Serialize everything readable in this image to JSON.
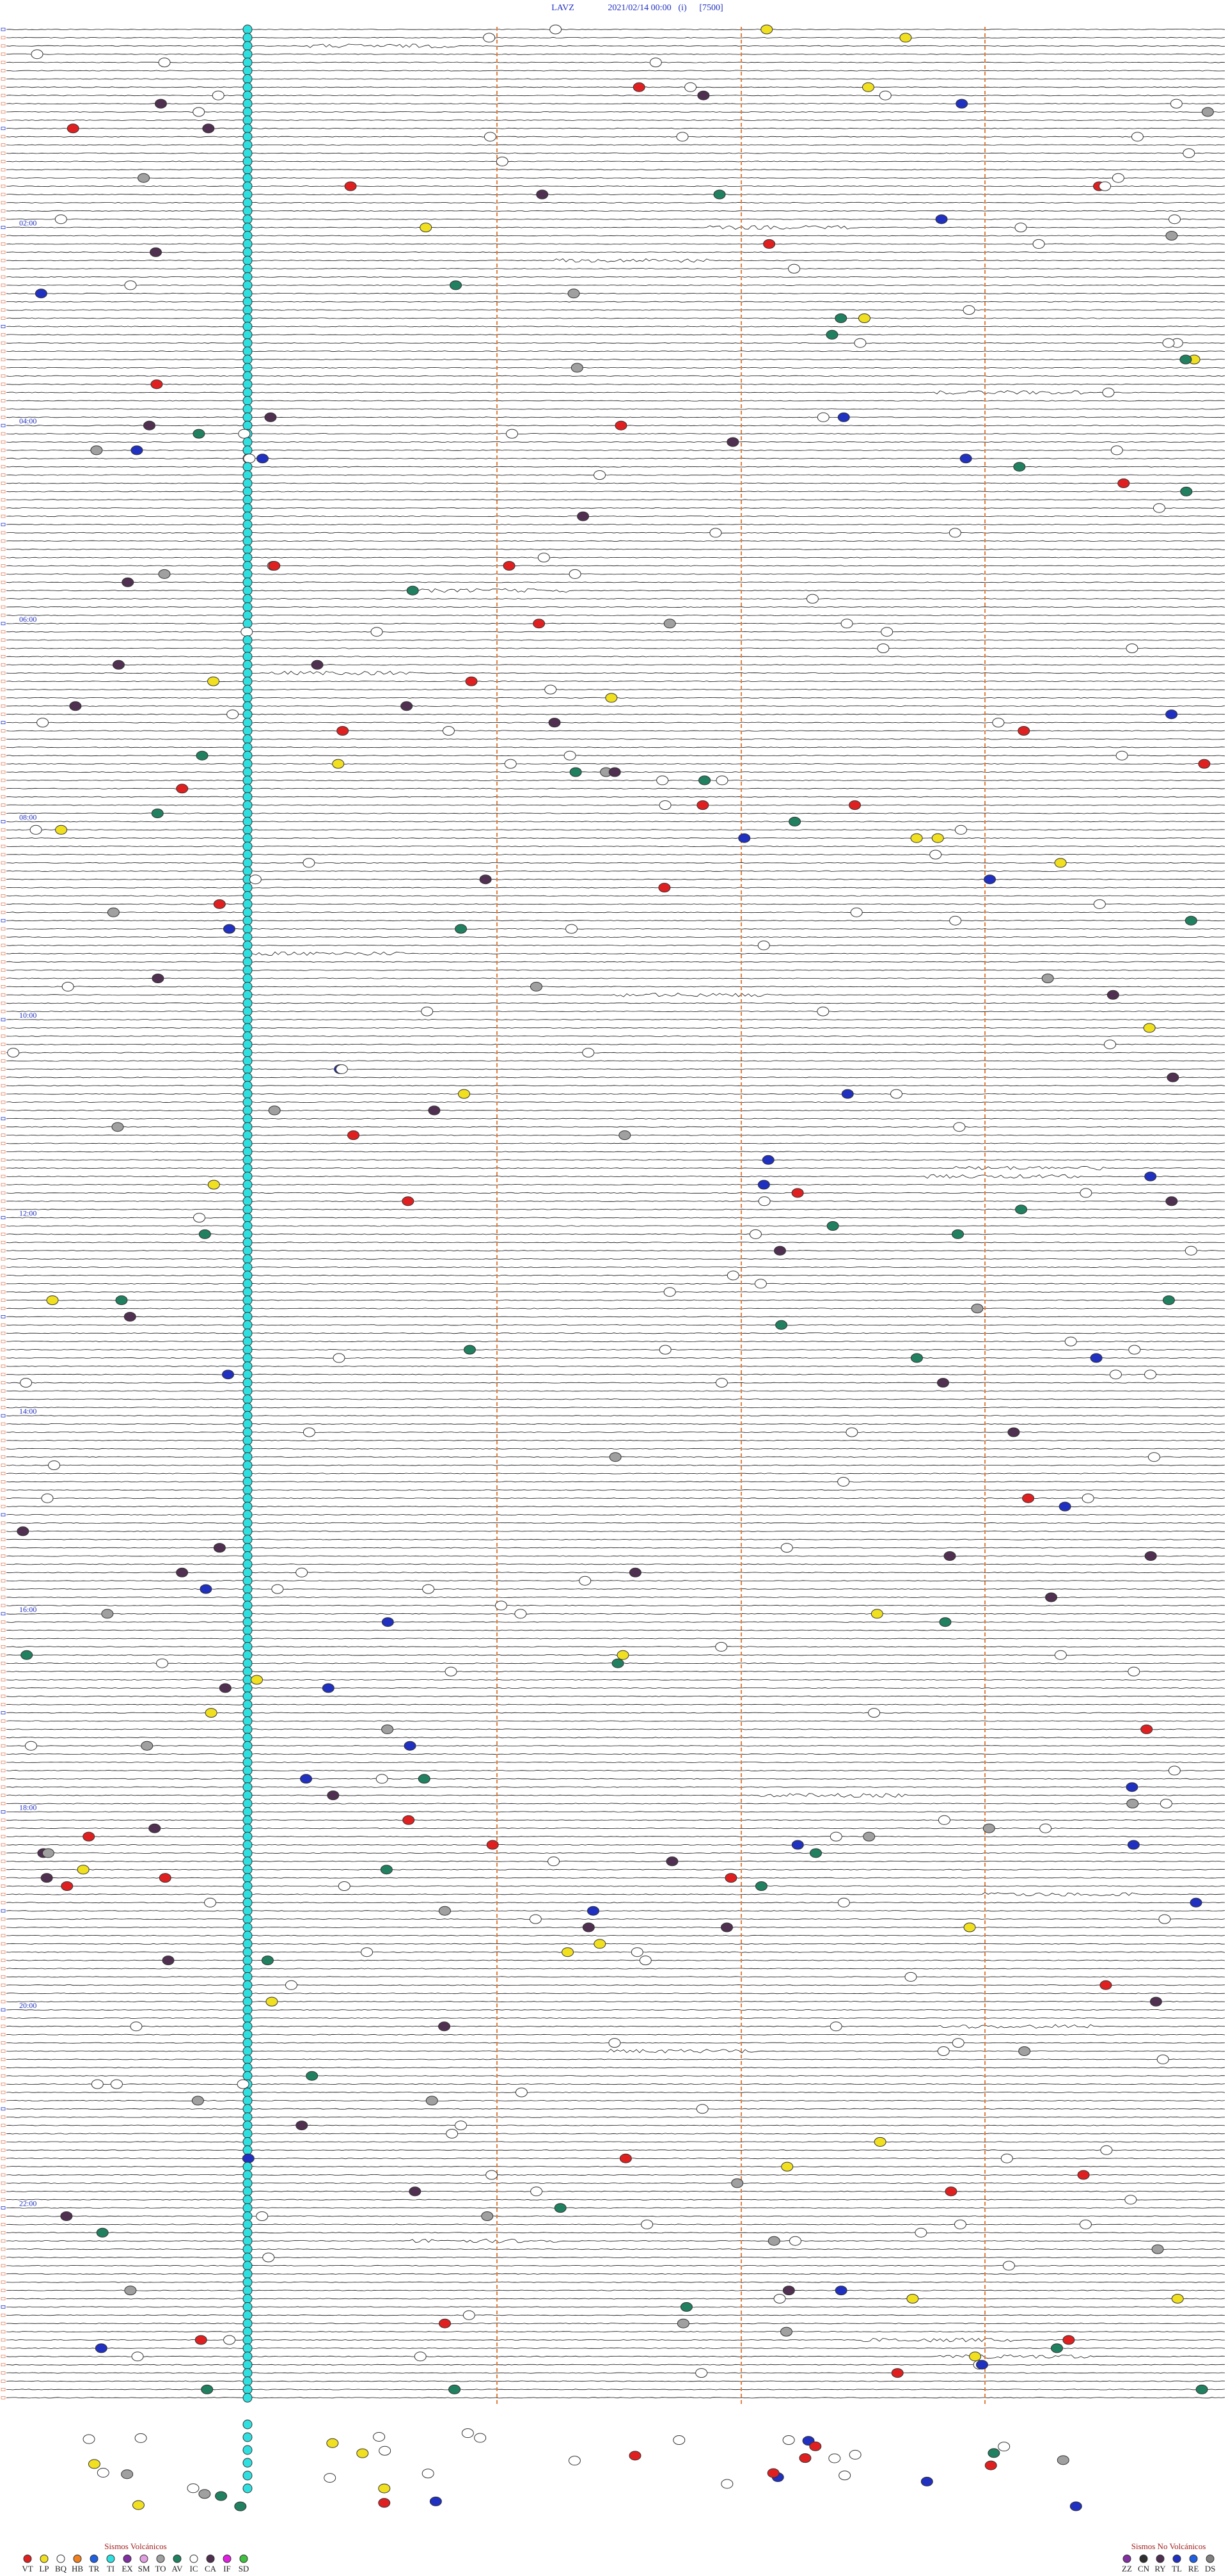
{
  "header": {
    "station": "LAVZ",
    "datetime": "2021/02/14 00:00",
    "mode": "(i)",
    "scale": "[7500]"
  },
  "hour_labels": [
    "02:00",
    "04:00",
    "06:00",
    "08:00",
    "10:00",
    "12:00",
    "14:00",
    "16:00",
    "18:00",
    "20:00",
    "22:00"
  ],
  "legend": {
    "volcanic": {
      "title": "Sismos Volcánicos",
      "codes": [
        {
          "code": "VT",
          "color": "#e02020"
        },
        {
          "code": "LP",
          "color": "#f0e020"
        },
        {
          "code": "BQ",
          "color": "#ffffff"
        },
        {
          "code": "HB",
          "color": "#f08020"
        },
        {
          "code": "TR",
          "color": "#2060e0"
        },
        {
          "code": "TI",
          "color": "#30e0e0"
        },
        {
          "code": "EX",
          "color": "#8030a0"
        },
        {
          "code": "SM",
          "color": "#e0a0e0"
        },
        {
          "code": "TO",
          "color": "#a0a0a0"
        },
        {
          "code": "AV",
          "color": "#208060"
        },
        {
          "code": "IC",
          "color": "#ffffff"
        },
        {
          "code": "CA",
          "color": "#503050"
        },
        {
          "code": "IF",
          "color": "#e020e0"
        },
        {
          "code": "SD",
          "color": "#40c040"
        }
      ]
    },
    "non_volcanic": {
      "title": "Sismos No Volcánicos",
      "codes": [
        {
          "code": "ZZ",
          "color": "#8030a0"
        },
        {
          "code": "CN",
          "color": "#303030"
        },
        {
          "code": "RY",
          "color": "#503050"
        },
        {
          "code": "TL",
          "color": "#2030c0"
        },
        {
          "code": "RE",
          "color": "#2060e0"
        },
        {
          "code": "DS",
          "color": "#808080"
        }
      ]
    }
  }
}
